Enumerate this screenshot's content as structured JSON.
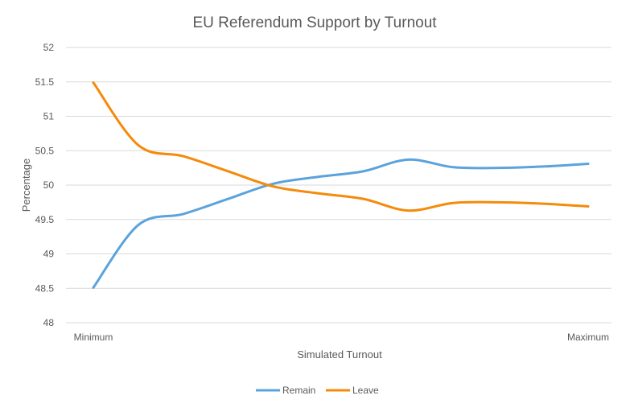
{
  "chart_data": {
    "type": "line",
    "title": "EU Referendum Support by Turnout",
    "xlabel": "Simulated Turnout",
    "ylabel": "Percentage",
    "ylim": [
      48,
      52
    ],
    "yticks": [
      "48",
      "48.5",
      "49",
      "49.5",
      "50",
      "50.5",
      "51",
      "51.5",
      "52"
    ],
    "x_tick_labels": [
      "Minimum",
      "Maximum"
    ],
    "grid": true,
    "legend_position": "bottom",
    "x": [
      1,
      2,
      3,
      4,
      5,
      6,
      7,
      8,
      9,
      10,
      11,
      12
    ],
    "series": [
      {
        "name": "Remain",
        "color": "#5ba3dc",
        "values": [
          48.51,
          49.42,
          49.58,
          49.8,
          50.02,
          50.12,
          50.2,
          50.37,
          50.26,
          50.25,
          50.27,
          50.31
        ]
      },
      {
        "name": "Leave",
        "color": "#f58a0b",
        "values": [
          51.49,
          50.58,
          50.42,
          50.2,
          49.98,
          49.88,
          49.8,
          49.63,
          49.74,
          49.75,
          49.73,
          49.69
        ]
      }
    ]
  }
}
